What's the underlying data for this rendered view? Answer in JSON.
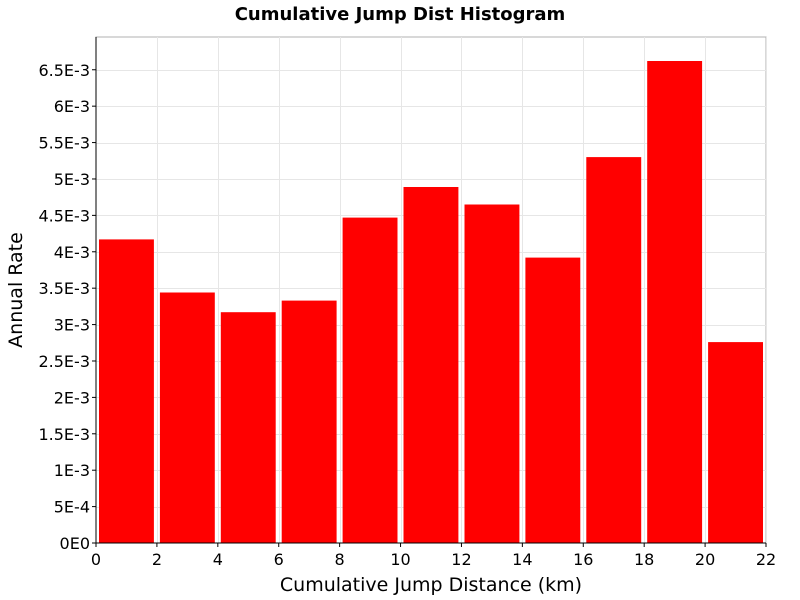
{
  "chart_data": {
    "type": "bar",
    "title": "Cumulative Jump Dist Histogram",
    "xlabel": "Cumulative Jump Distance (km)",
    "ylabel": "Annual Rate",
    "bin_edges": [
      0,
      2,
      4,
      6,
      8,
      10,
      12,
      14,
      16,
      18,
      20,
      22
    ],
    "values": [
      0.00417,
      0.00344,
      0.00317,
      0.00333,
      0.00447,
      0.00489,
      0.00465,
      0.00392,
      0.0053,
      0.00662,
      0.00276
    ],
    "xlim": [
      0,
      22
    ],
    "ylim": [
      0,
      0.00695
    ],
    "x_ticks": [
      0,
      2,
      4,
      6,
      8,
      10,
      12,
      14,
      16,
      18,
      20,
      22
    ],
    "x_tick_labels": [
      "0",
      "2",
      "4",
      "6",
      "8",
      "10",
      "12",
      "14",
      "16",
      "18",
      "20",
      "22"
    ],
    "y_ticks": [
      0,
      0.0005,
      0.001,
      0.0015,
      0.002,
      0.0025,
      0.003,
      0.0035,
      0.004,
      0.0045,
      0.005,
      0.0055,
      0.006,
      0.0065
    ],
    "y_tick_labels": [
      "0E0",
      "5E-4",
      "1E-3",
      "1.5E-3",
      "2E-3",
      "2.5E-3",
      "3E-3",
      "3.5E-3",
      "4E-3",
      "4.5E-3",
      "5E-3",
      "5.5E-3",
      "6E-3",
      "6.5E-3"
    ],
    "bar_color": "#ff0000",
    "grid": true,
    "legend": "none"
  }
}
